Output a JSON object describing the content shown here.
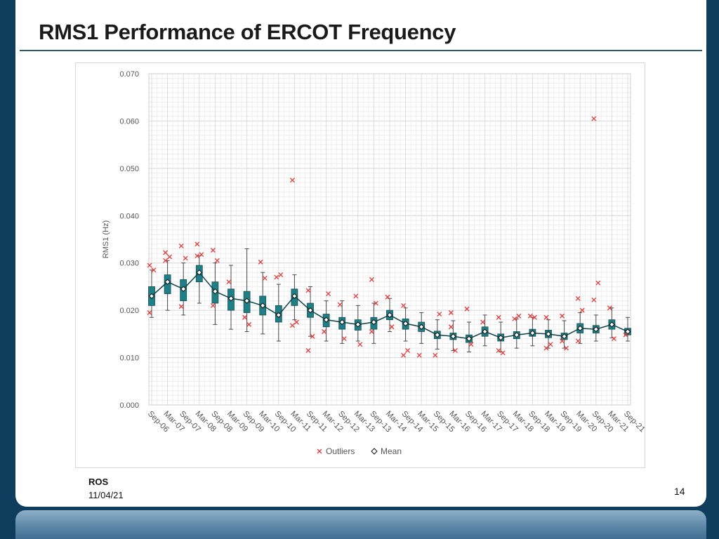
{
  "slide": {
    "title": "RMS1 Performance of ERCOT Frequency",
    "footer_org": "ROS",
    "footer_date": "11/04/21",
    "slide_number": "14"
  },
  "colors": {
    "slide_background": "#0f3d5e",
    "title_rule": "#2c5a73",
    "box_fill": "#1f7f86",
    "whisker": "#4a4a4a",
    "outlier": "#e03a3a",
    "mean_marker_stroke": "#111111",
    "mean_marker_fill": "#ffffff",
    "gridline": "#d9d9d9"
  },
  "chart_data": {
    "type": "box-whisker",
    "title": "",
    "xlabel": "",
    "ylabel": "RMS1 (Hz)",
    "ylim": [
      0,
      0.07
    ],
    "yticks": [
      "0.000",
      "0.010",
      "0.020",
      "0.030",
      "0.040",
      "0.050",
      "0.060",
      "0.070"
    ],
    "ytick_values": [
      0,
      0.01,
      0.02,
      0.03,
      0.04,
      0.05,
      0.06,
      0.07
    ],
    "grid": true,
    "legend_position": "bottom",
    "legend": [
      {
        "name": "Outliers",
        "marker": "x",
        "color": "#e03a3a"
      },
      {
        "name": "Mean",
        "marker": "diamond",
        "color": "#111111"
      }
    ],
    "categories": [
      "Sep-06",
      "Mar-07",
      "Sep-07",
      "Mar-08",
      "Sep-08",
      "Mar-09",
      "Sep-09",
      "Mar-10",
      "Sep-10",
      "Mar-11",
      "Sep-11",
      "Mar-12",
      "Sep-12",
      "Mar-13",
      "Sep-13",
      "Mar-14",
      "Sep-14",
      "Mar-15",
      "Sep-15",
      "Mar-16",
      "Sep-16",
      "Mar-17",
      "Sep-17",
      "Mar-18",
      "Sep-18",
      "Mar-19",
      "Sep-19",
      "Mar-20",
      "Sep-20",
      "Mar-21",
      "Sep-21"
    ],
    "series": [
      {
        "name": "Mean",
        "values": [
          0.023,
          0.026,
          0.0245,
          0.028,
          0.024,
          0.0225,
          0.022,
          0.021,
          0.019,
          0.023,
          0.02,
          0.018,
          0.0175,
          0.017,
          0.0175,
          0.019,
          0.0172,
          0.0165,
          0.0148,
          0.0145,
          0.014,
          0.0155,
          0.0142,
          0.0148,
          0.0152,
          0.015,
          0.0145,
          0.0162,
          0.016,
          0.017,
          0.0155
        ],
        "q1": [
          0.021,
          0.0235,
          0.022,
          0.026,
          0.0215,
          0.02,
          0.0195,
          0.019,
          0.0175,
          0.021,
          0.0185,
          0.0165,
          0.016,
          0.0158,
          0.016,
          0.018,
          0.016,
          0.0155,
          0.014,
          0.0138,
          0.0132,
          0.0145,
          0.0135,
          0.014,
          0.0145,
          0.0142,
          0.0138,
          0.0152,
          0.0152,
          0.016,
          0.0148
        ],
        "q3": [
          0.025,
          0.0275,
          0.0265,
          0.0295,
          0.026,
          0.0245,
          0.024,
          0.023,
          0.021,
          0.0245,
          0.0215,
          0.0192,
          0.0185,
          0.018,
          0.0185,
          0.02,
          0.0182,
          0.0175,
          0.0156,
          0.0152,
          0.0148,
          0.0165,
          0.015,
          0.0155,
          0.016,
          0.0158,
          0.0152,
          0.0172,
          0.0168,
          0.018,
          0.0162
        ],
        "whisker_low": [
          0.0185,
          0.02,
          0.019,
          0.0215,
          0.017,
          0.016,
          0.0155,
          0.015,
          0.0135,
          0.018,
          0.0145,
          0.0135,
          0.013,
          0.0135,
          0.013,
          0.0155,
          0.0135,
          0.013,
          0.0118,
          0.0115,
          0.0112,
          0.0125,
          0.0112,
          0.012,
          0.0125,
          0.012,
          0.012,
          0.013,
          0.0135,
          0.0142,
          0.0135
        ],
        "whisker_high": [
          0.0285,
          0.0305,
          0.03,
          0.0315,
          0.03,
          0.0295,
          0.033,
          0.028,
          0.0255,
          0.0275,
          0.025,
          0.022,
          0.022,
          0.021,
          0.0215,
          0.0225,
          0.0205,
          0.0195,
          0.018,
          0.0178,
          0.0175,
          0.019,
          0.0175,
          0.0182,
          0.0185,
          0.018,
          0.0178,
          0.0195,
          0.019,
          0.0205,
          0.0185
        ]
      }
    ],
    "outliers": [
      {
        "x": "Sep-06",
        "values": [
          0.0295,
          0.0285,
          0.0195
        ]
      },
      {
        "x": "Mar-07",
        "values": [
          0.0322,
          0.0313,
          0.0305
        ]
      },
      {
        "x": "Sep-07",
        "values": [
          0.0336,
          0.031,
          0.0208
        ]
      },
      {
        "x": "Mar-08",
        "values": [
          0.034,
          0.0318,
          0.0315
        ]
      },
      {
        "x": "Sep-08",
        "values": [
          0.0327,
          0.0305,
          0.021
        ]
      },
      {
        "x": "Mar-09",
        "values": [
          0.026
        ]
      },
      {
        "x": "Sep-09",
        "values": [
          0.0185,
          0.017
        ]
      },
      {
        "x": "Mar-10",
        "values": [
          0.0302,
          0.0268
        ]
      },
      {
        "x": "Sep-10",
        "values": [
          0.027,
          0.0275
        ]
      },
      {
        "x": "Mar-11",
        "values": [
          0.0475,
          0.0175,
          0.0168
        ]
      },
      {
        "x": "Sep-11",
        "values": [
          0.0242,
          0.0145,
          0.0115
        ]
      },
      {
        "x": "Mar-12",
        "values": [
          0.0155,
          0.0235
        ]
      },
      {
        "x": "Sep-12",
        "values": [
          0.0212,
          0.014
        ]
      },
      {
        "x": "Mar-13",
        "values": [
          0.023,
          0.0128
        ]
      },
      {
        "x": "Sep-13",
        "values": [
          0.0265,
          0.0215,
          0.0155
        ]
      },
      {
        "x": "Mar-14",
        "values": [
          0.0228,
          0.0165
        ]
      },
      {
        "x": "Sep-14",
        "values": [
          0.021,
          0.0115,
          0.0105
        ]
      },
      {
        "x": "Mar-15",
        "values": [
          0.0105
        ]
      },
      {
        "x": "Sep-15",
        "values": [
          0.0105,
          0.0192
        ]
      },
      {
        "x": "Mar-16",
        "values": [
          0.0195,
          0.0115,
          0.0165
        ]
      },
      {
        "x": "Sep-16",
        "values": [
          0.0203,
          0.0128
        ]
      },
      {
        "x": "Mar-17",
        "values": [
          0.0175
        ]
      },
      {
        "x": "Sep-17",
        "values": [
          0.0185,
          0.011,
          0.0115
        ]
      },
      {
        "x": "Mar-18",
        "values": [
          0.0182,
          0.0188
        ]
      },
      {
        "x": "Sep-18",
        "values": [
          0.0188,
          0.0185
        ]
      },
      {
        "x": "Mar-19",
        "values": [
          0.0185,
          0.0128,
          0.012
        ]
      },
      {
        "x": "Sep-19",
        "values": [
          0.0188,
          0.012,
          0.0135
        ]
      },
      {
        "x": "Mar-20",
        "values": [
          0.0225,
          0.02,
          0.0135
        ]
      },
      {
        "x": "Sep-20",
        "values": [
          0.0605,
          0.0258,
          0.0222
        ]
      },
      {
        "x": "Mar-21",
        "values": [
          0.0205,
          0.014
        ]
      },
      {
        "x": "Sep-21",
        "values": [
          0.0148
        ]
      }
    ]
  }
}
